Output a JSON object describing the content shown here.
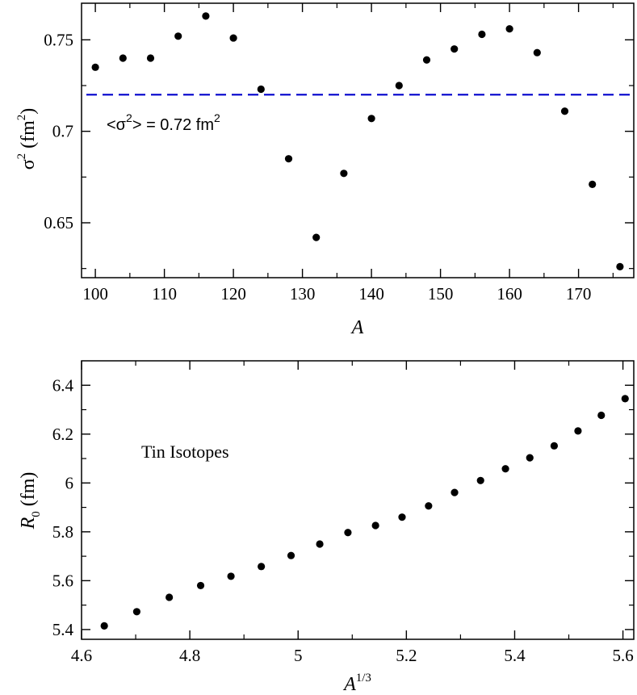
{
  "chart_data": [
    {
      "type": "scatter",
      "xlabel": "A",
      "ylabel_base": "σ",
      "ylabel_sup": "2",
      "ylabel_unit": "(fm",
      "ylabel_unit_sup": "2",
      "ylabel_close": ")",
      "xlim": [
        98,
        178
      ],
      "ylim": [
        0.62,
        0.77
      ],
      "xticks": [
        100,
        110,
        120,
        130,
        140,
        150,
        160,
        170
      ],
      "xtick_labels": [
        "100",
        "110",
        "120",
        "130",
        "140",
        "150",
        "160",
        "170"
      ],
      "yticks": [
        0.65,
        0.7,
        0.75
      ],
      "ytick_labels": [
        "0.65",
        "0.7",
        "0.75"
      ],
      "x": [
        100,
        104,
        108,
        112,
        116,
        120,
        124,
        128,
        132,
        136,
        140,
        144,
        148,
        152,
        156,
        160,
        164,
        168,
        172,
        176
      ],
      "y": [
        0.735,
        0.74,
        0.74,
        0.752,
        0.763,
        0.751,
        0.723,
        0.685,
        0.642,
        0.677,
        0.707,
        0.725,
        0.739,
        0.745,
        0.753,
        0.756,
        0.743,
        0.711,
        0.671,
        0.626
      ],
      "reference_line": {
        "y": 0.72,
        "style": "dashed",
        "color": "#0000cc"
      },
      "annotation": {
        "open": "<σ",
        "sup": "2",
        "mid": "> = 0.72  fm",
        "sup2": "2"
      },
      "grid": false
    },
    {
      "type": "scatter",
      "xlabel": "A",
      "xlabel_sup": "1/3",
      "ylabel": "R",
      "ylabel_sub": "0",
      "ylabel_unit": "(fm)",
      "xlim": [
        4.6,
        5.62
      ],
      "ylim": [
        5.36,
        6.5
      ],
      "xticks": [
        4.6,
        4.8,
        5.0,
        5.2,
        5.4,
        5.6
      ],
      "xtick_labels": [
        "4.6",
        "4.8",
        "5",
        "5.2",
        "5.4",
        "5.6"
      ],
      "yticks": [
        5.4,
        5.6,
        5.8,
        6.0,
        6.2,
        6.4
      ],
      "ytick_labels": [
        "5.4",
        "5.6",
        "5.8",
        "6",
        "6.2",
        "6.4"
      ],
      "x": [
        4.642,
        4.702,
        4.762,
        4.82,
        4.876,
        4.932,
        4.987,
        5.04,
        5.092,
        5.143,
        5.192,
        5.241,
        5.289,
        5.337,
        5.383,
        5.428,
        5.473,
        5.517,
        5.56,
        5.604
      ],
      "y": [
        5.415,
        5.473,
        5.532,
        5.58,
        5.618,
        5.658,
        5.703,
        5.75,
        5.797,
        5.826,
        5.86,
        5.906,
        5.961,
        6.01,
        6.058,
        6.103,
        6.152,
        6.213,
        6.277,
        6.345
      ],
      "annotation": "Tin Isotopes",
      "grid": false
    }
  ]
}
